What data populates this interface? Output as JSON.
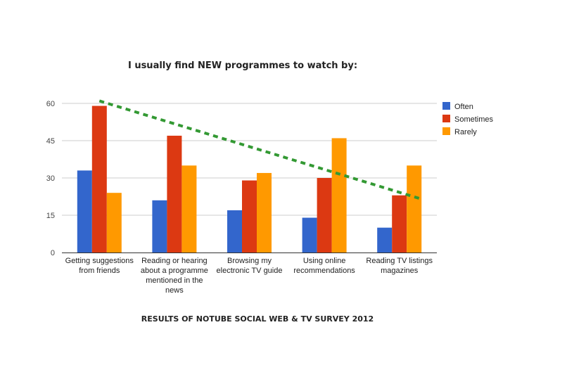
{
  "chart_data": {
    "type": "bar",
    "title": "I usually find NEW programmes to watch by:",
    "caption": "RESULTS OF NOTUBE SOCIAL WEB & TV SURVEY 2012",
    "categories": [
      [
        "Getting suggestions",
        "from friends"
      ],
      [
        "Reading or hearing",
        "about a programme",
        "mentioned in the",
        "news"
      ],
      [
        "Browsing my",
        "electronic TV guide"
      ],
      [
        "Using online",
        "recommendations"
      ],
      [
        "Reading TV listings",
        "magazines"
      ]
    ],
    "series": [
      {
        "name": "Often",
        "color": "#3366cc",
        "values": [
          33,
          21,
          17,
          14,
          10
        ]
      },
      {
        "name": "Sometimes",
        "color": "#dc3912",
        "values": [
          59,
          47,
          29,
          30,
          23
        ]
      },
      {
        "name": "Rarely",
        "color": "#ff9900",
        "values": [
          24,
          35,
          32,
          46,
          35
        ]
      }
    ],
    "trendline": {
      "color": "#339933",
      "style": "dashed",
      "start": 61,
      "end": 21.5
    },
    "ylim": [
      0,
      60
    ],
    "yticks": [
      0,
      15,
      30,
      45,
      60
    ],
    "grid": true,
    "legend": "right"
  }
}
